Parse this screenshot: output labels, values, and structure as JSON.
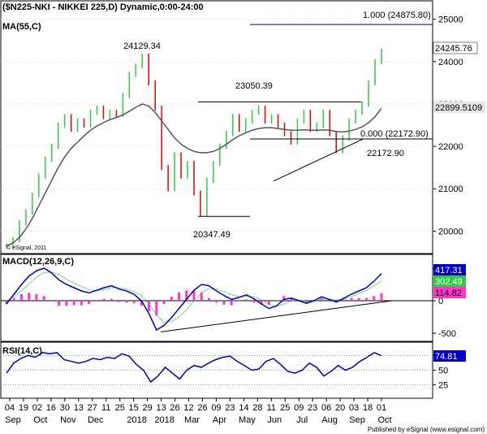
{
  "chart_data": {
    "type": "line",
    "title": "($N225-NKI - NIKKEI 225,D) Dynamic,0:00-24:00",
    "ma_label": "MA(55,C)",
    "x_ticks": [
      "04",
      "19",
      "02",
      "16",
      "30",
      "13",
      "27",
      "11",
      "25",
      "15",
      "29",
      "13",
      "26",
      "12",
      "26",
      "09",
      "23",
      "14",
      "28",
      "11",
      "25",
      "09",
      "23",
      "06",
      "20",
      "03",
      "18",
      "01"
    ],
    "x_months": [
      "Sep",
      "Oct",
      "Nov",
      "Dec",
      "2018",
      "2018",
      "Mar",
      "Apr",
      "May",
      "Jun",
      "Jul",
      "Aug",
      "Sep",
      "Oct"
    ],
    "price_axis": {
      "ticks": [
        20000,
        21000,
        22000,
        23000,
        24000,
        25000
      ],
      "ylim": [
        19700,
        25300
      ]
    },
    "price_series_close": [
      19650,
      19800,
      20200,
      20450,
      20850,
      21300,
      21700,
      22000,
      22500,
      22700,
      22400,
      22600,
      22500,
      22800,
      22900,
      22700,
      22800,
      22750,
      23200,
      23700,
      23900,
      24129,
      23500,
      22900,
      21500,
      21000,
      21800,
      21300,
      21600,
      20900,
      20400,
      21200,
      21600,
      22000,
      22300,
      22700,
      22400,
      22600,
      22800,
      22900,
      22600,
      22700,
      22500,
      22300,
      22100,
      22600,
      22800,
      22400,
      22500,
      22800,
      22300,
      21900,
      22200,
      22600,
      22800,
      23000,
      23500,
      24000,
      24246
    ],
    "ma_series": [
      19650,
      19720,
      19850,
      20050,
      20300,
      20600,
      20900,
      21200,
      21500,
      21750,
      21950,
      22100,
      22250,
      22380,
      22480,
      22560,
      22630,
      22680,
      22740,
      22830,
      22920,
      23000,
      22950,
      22800,
      22600,
      22400,
      22200,
      22050,
      21950,
      21880,
      21850,
      21850,
      21880,
      21950,
      22050,
      22160,
      22250,
      22320,
      22380,
      22420,
      22440,
      22440,
      22420,
      22400,
      22380,
      22380,
      22390,
      22380,
      22380,
      22390,
      22380,
      22350,
      22340,
      22360,
      22400,
      22460,
      22560,
      22700,
      22900
    ],
    "annotations": {
      "high_label": "24129.34",
      "low_label": "20347.49",
      "resistance_label": "23050.39",
      "support_label": "22172.90",
      "fib_0": "0.000 (22172.90)",
      "fib_1": "1.000 (24875.80)",
      "last_price": "24245.76",
      "ma_value": "22899.5109",
      "watermark": "© eSignal, 2011"
    },
    "macd": {
      "label": "MACD(12,26,9,C)",
      "ticks": [
        500,
        0,
        -500
      ],
      "values": {
        "macd": "417.31",
        "signal": "302.49",
        "hist": "114.82"
      },
      "macd_series": [
        -50,
        100,
        250,
        380,
        460,
        500,
        430,
        320,
        250,
        200,
        150,
        120,
        160,
        200,
        230,
        180,
        150,
        100,
        0,
        -200,
        -450,
        -380,
        -260,
        -120,
        20,
        160,
        250,
        230,
        150,
        80,
        20,
        50,
        90,
        30,
        -50,
        -120,
        -80,
        20,
        40,
        0,
        -40,
        0,
        60,
        20,
        -20,
        40,
        100,
        150,
        200,
        300,
        417
      ],
      "signal_series": [
        0,
        60,
        150,
        260,
        360,
        430,
        440,
        400,
        330,
        270,
        220,
        170,
        150,
        170,
        200,
        200,
        180,
        140,
        80,
        -40,
        -220,
        -330,
        -320,
        -250,
        -140,
        0,
        120,
        190,
        180,
        140,
        90,
        60,
        70,
        60,
        10,
        -60,
        -90,
        -50,
        0,
        10,
        -10,
        -10,
        20,
        30,
        10,
        20,
        60,
        110,
        160,
        230,
        302
      ]
    },
    "rsi": {
      "label": "RSI(14,C)",
      "ticks": [
        75,
        50,
        25
      ],
      "value": "74.81",
      "series": [
        45,
        62,
        70,
        75,
        72,
        80,
        78,
        80,
        68,
        65,
        62,
        65,
        70,
        68,
        72,
        70,
        78,
        74,
        60,
        50,
        30,
        40,
        55,
        45,
        35,
        50,
        58,
        55,
        62,
        68,
        72,
        74,
        65,
        58,
        50,
        52,
        65,
        70,
        60,
        48,
        45,
        50,
        62,
        55,
        40,
        48,
        58,
        50,
        55,
        65,
        72,
        80,
        74.81
      ]
    },
    "footer": "Published by eSignal (www.esignal.com)"
  }
}
